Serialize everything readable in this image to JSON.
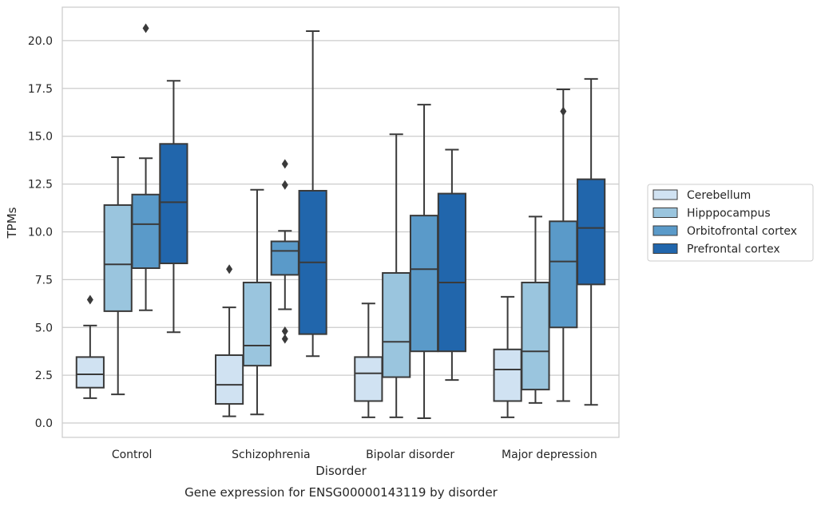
{
  "chart_data": {
    "type": "box",
    "xlabel": "Disorder",
    "ylabel": "TPMs",
    "caption": "Gene expression for ENSG00000143119 by disorder",
    "ylim": [
      -0.75,
      21.75
    ],
    "yticks": [
      "0.0",
      "2.5",
      "5.0",
      "7.5",
      "10.0",
      "12.5",
      "15.0",
      "17.5",
      "20.0"
    ],
    "grid": "horizontal",
    "legend_position": "right",
    "categories": [
      "Control",
      "Schizophrenia",
      "Bipolar disorder",
      "Major depression"
    ],
    "series": [
      {
        "name": "Cerebellum",
        "color": "#d0e2f2",
        "boxes": [
          {
            "whislo": 1.3,
            "q1": 1.85,
            "med": 2.55,
            "q3": 3.45,
            "whishi": 5.1,
            "fliers": [
              6.45
            ]
          },
          {
            "whislo": 0.35,
            "q1": 1.0,
            "med": 2.0,
            "q3": 3.55,
            "whishi": 6.05,
            "fliers": [
              8.05
            ]
          },
          {
            "whislo": 0.3,
            "q1": 1.15,
            "med": 2.6,
            "q3": 3.45,
            "whishi": 6.25,
            "fliers": []
          },
          {
            "whislo": 0.3,
            "q1": 1.15,
            "med": 2.8,
            "q3": 3.85,
            "whishi": 6.6,
            "fliers": []
          }
        ]
      },
      {
        "name": "Hipppocampus",
        "color": "#9ac5de",
        "boxes": [
          {
            "whislo": 1.5,
            "q1": 5.85,
            "med": 8.3,
            "q3": 11.4,
            "whishi": 13.9,
            "fliers": []
          },
          {
            "whislo": 0.45,
            "q1": 3.0,
            "med": 4.05,
            "q3": 7.35,
            "whishi": 12.2,
            "fliers": []
          },
          {
            "whislo": 0.3,
            "q1": 2.4,
            "med": 4.25,
            "q3": 7.85,
            "whishi": 15.1,
            "fliers": []
          },
          {
            "whislo": 1.05,
            "q1": 1.75,
            "med": 3.75,
            "q3": 7.35,
            "whishi": 10.8,
            "fliers": []
          }
        ]
      },
      {
        "name": "Orbitofrontal cortex",
        "color": "#5a9ac9",
        "boxes": [
          {
            "whislo": 5.9,
            "q1": 8.1,
            "med": 10.4,
            "q3": 11.95,
            "whishi": 13.85,
            "fliers": [
              20.65
            ]
          },
          {
            "whislo": 5.95,
            "q1": 7.75,
            "med": 9.0,
            "q3": 9.5,
            "whishi": 10.05,
            "fliers": [
              4.4,
              4.8,
              12.45,
              13.55
            ]
          },
          {
            "whislo": 0.25,
            "q1": 3.75,
            "med": 8.05,
            "q3": 10.85,
            "whishi": 16.65,
            "fliers": []
          },
          {
            "whislo": 1.15,
            "q1": 5.0,
            "med": 8.45,
            "q3": 10.55,
            "whishi": 17.45,
            "fliers": [
              16.3
            ]
          }
        ]
      },
      {
        "name": "Prefrontal cortex",
        "color": "#2166ac",
        "boxes": [
          {
            "whislo": 4.75,
            "q1": 8.35,
            "med": 11.55,
            "q3": 14.6,
            "whishi": 17.9,
            "fliers": []
          },
          {
            "whislo": 3.5,
            "q1": 4.65,
            "med": 8.4,
            "q3": 12.15,
            "whishi": 20.5,
            "fliers": []
          },
          {
            "whislo": 2.25,
            "q1": 3.75,
            "med": 7.35,
            "q3": 12.0,
            "whishi": 14.3,
            "fliers": []
          },
          {
            "whislo": 0.95,
            "q1": 7.25,
            "med": 10.2,
            "q3": 12.75,
            "whishi": 18.0,
            "fliers": []
          }
        ]
      }
    ]
  }
}
